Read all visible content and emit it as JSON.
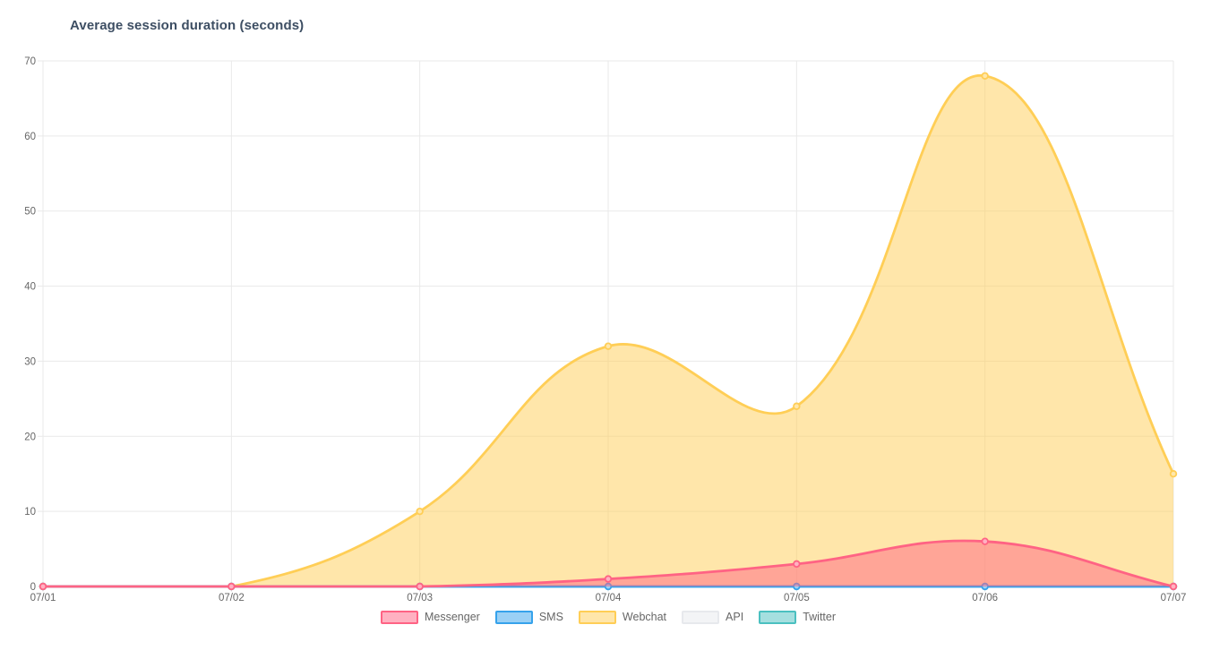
{
  "title": "Average session duration (seconds)",
  "chart_data": {
    "type": "area",
    "title": "Average session duration (seconds)",
    "categories": [
      "07/01",
      "07/02",
      "07/03",
      "07/04",
      "07/05",
      "07/06",
      "07/07"
    ],
    "series": [
      {
        "name": "Messenger",
        "color": "#FF6384",
        "fill": "rgba(255,99,132,0.5)",
        "point_fill": "#FFB1C2",
        "values": [
          0,
          0,
          0,
          1,
          3,
          6,
          0
        ]
      },
      {
        "name": "SMS",
        "color": "#36A2EB",
        "fill": "rgba(54,162,235,0.5)",
        "point_fill": "#9BD1F5",
        "values": [
          0,
          0,
          0,
          0,
          0,
          0,
          0
        ]
      },
      {
        "name": "Webchat",
        "color": "#FFCE56",
        "fill": "rgba(255,206,86,0.5)",
        "point_fill": "#FFE7AB",
        "values": [
          0,
          0,
          10,
          32,
          24,
          68,
          15
        ]
      },
      {
        "name": "API",
        "color": "#E7E9ED",
        "fill": "rgba(231,233,237,0.5)",
        "point_fill": "#F3F4F6",
        "values": [
          0,
          0,
          0,
          0,
          0,
          0,
          0
        ]
      },
      {
        "name": "Twitter",
        "color": "#4BC0C0",
        "fill": "rgba(75,192,192,0.5)",
        "point_fill": "#A5E0E0",
        "values": [
          0,
          0,
          0,
          0,
          0,
          0,
          0
        ]
      }
    ],
    "xlabel": "",
    "ylabel": "",
    "ylim": [
      0,
      70
    ],
    "y_ticks": [
      0,
      10,
      20,
      30,
      40,
      50,
      60,
      70
    ],
    "grid": true,
    "legend_position": "bottom",
    "line_tension": 0.4
  },
  "style": {
    "grid_color": "#e9e9e9",
    "tick_label_color": "#666666",
    "title_color": "#3d4e63",
    "legend_text_color": "#666666",
    "background": "#ffffff"
  }
}
